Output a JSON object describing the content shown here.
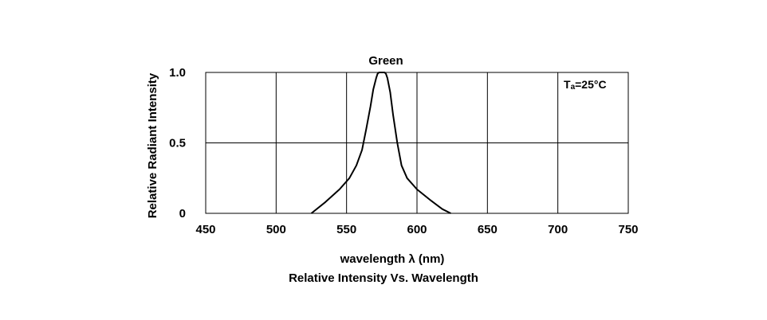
{
  "chart_data": {
    "type": "line",
    "title": "Green",
    "caption": "Relative Intensity Vs. Wavelength",
    "xlabel": "wavelength λ (nm)",
    "ylabel": "Relative Radiant Intensity",
    "annotation": {
      "symbol": "T",
      "subscript": "a",
      "value": "=25°C"
    },
    "xlim": [
      450,
      750
    ],
    "ylim": [
      0,
      1.0
    ],
    "x_ticks": [
      450,
      500,
      550,
      600,
      650,
      700,
      750
    ],
    "x_tick_labels": [
      "450",
      "500",
      "550",
      "600",
      "650",
      "700",
      "750"
    ],
    "y_ticks": [
      0,
      0.5,
      1.0
    ],
    "y_tick_labels": [
      "0",
      "0.5",
      "1.0"
    ],
    "grid": true,
    "series": [
      {
        "x": [
          525,
          535,
          545,
          552,
          557,
          561,
          564,
          567,
          569,
          571,
          572,
          573,
          575,
          577,
          578,
          579,
          581,
          583,
          586,
          589,
          593,
          600,
          610,
          618,
          624
        ],
        "y": [
          0.0,
          0.08,
          0.17,
          0.25,
          0.34,
          0.45,
          0.6,
          0.76,
          0.88,
          0.96,
          0.99,
          1.0,
          1.0,
          1.0,
          0.99,
          0.96,
          0.86,
          0.7,
          0.5,
          0.34,
          0.25,
          0.17,
          0.09,
          0.03,
          0.0
        ]
      }
    ]
  }
}
